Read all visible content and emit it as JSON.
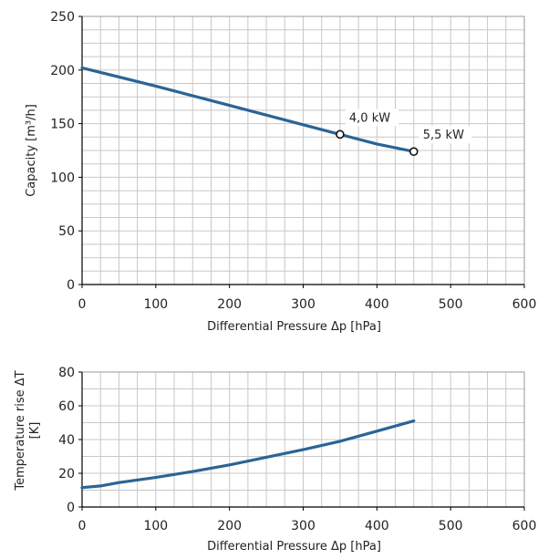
{
  "chart_data": [
    {
      "type": "line",
      "xlabel": "Differential Pressure Δp [hPa]",
      "ylabel": "Capacity [m³/h]",
      "xlim": [
        0,
        600
      ],
      "ylim": [
        0,
        250
      ],
      "xticks": [
        0,
        100,
        200,
        300,
        400,
        500,
        600
      ],
      "yticks": [
        0,
        50,
        100,
        150,
        200,
        250
      ],
      "x_minor_step": 25,
      "y_minor_step": 12.5,
      "grid": true,
      "line_color": "#2a6496",
      "series": [
        {
          "x": [
            0,
            100,
            200,
            300,
            350,
            400,
            450
          ],
          "y": [
            202,
            185,
            167,
            149,
            140,
            131,
            124
          ]
        }
      ],
      "markers": [
        {
          "x": 350,
          "y": 140,
          "label": "4,0 kW"
        },
        {
          "x": 450,
          "y": 124,
          "label": "5,5 kW"
        }
      ]
    },
    {
      "type": "line",
      "xlabel": "Differential Pressure Δp [hPa]",
      "ylabel": "Temperature rise ΔT [K]",
      "ylabel_lines": [
        "Temperature rise ΔT",
        "[K]"
      ],
      "xlim": [
        0,
        600
      ],
      "ylim": [
        0,
        80
      ],
      "xticks": [
        0,
        100,
        200,
        300,
        400,
        500,
        600
      ],
      "yticks": [
        0,
        20,
        40,
        60,
        80
      ],
      "x_minor_step": 25,
      "y_minor_step": 10,
      "grid": true,
      "line_color": "#2a6496",
      "series": [
        {
          "x": [
            0,
            25,
            50,
            100,
            150,
            200,
            250,
            300,
            350,
            400,
            450
          ],
          "y": [
            11.5,
            12.5,
            14.5,
            17.5,
            21,
            25,
            29.5,
            34,
            39,
            45,
            51
          ]
        }
      ],
      "markers": []
    }
  ]
}
